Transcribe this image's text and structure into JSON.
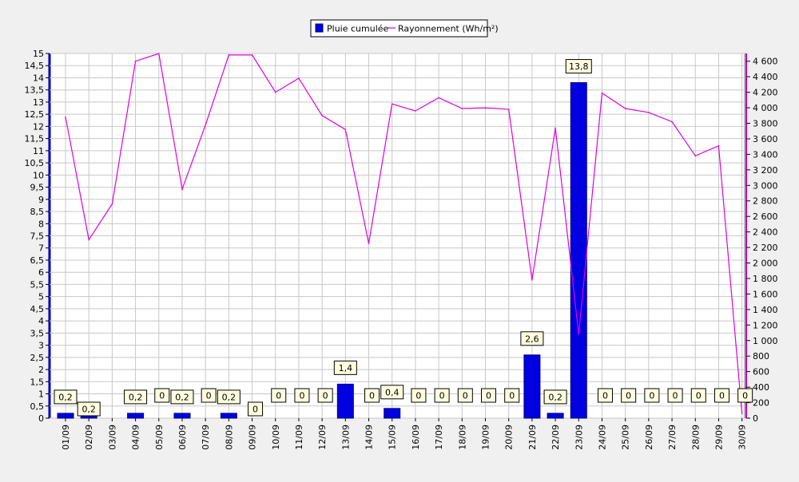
{
  "chart_data": {
    "type": "bar",
    "categories": [
      "01/09",
      "02/09",
      "03/09",
      "04/09",
      "05/09",
      "06/09",
      "07/09",
      "08/09",
      "09/09",
      "10/09",
      "11/09",
      "12/09",
      "13/09",
      "14/09",
      "15/09",
      "16/09",
      "17/09",
      "18/09",
      "19/09",
      "20/09",
      "21/09",
      "22/09",
      "23/09",
      "24/09",
      "25/09",
      "26/09",
      "27/09",
      "28/09",
      "29/09",
      "30/09"
    ],
    "series": [
      {
        "name": "Pluie cumulée",
        "type": "bar",
        "axis": "left",
        "color": "#0000e0",
        "values": [
          0.2,
          0.2,
          0,
          0.2,
          0,
          0.2,
          0,
          0.2,
          0,
          0,
          0,
          0,
          1.4,
          0,
          0.4,
          0,
          0,
          0,
          0,
          0,
          2.6,
          0.2,
          13.8,
          0,
          0,
          0,
          0,
          0,
          0,
          0
        ],
        "labels": [
          "0,2",
          "0,2",
          null,
          "0,2",
          "0",
          "0,2",
          "0",
          "0,2",
          "0",
          "0",
          "0",
          "0",
          "1,4",
          "0",
          "0,4",
          "0",
          "0",
          "0",
          "0",
          "0",
          "2,6",
          "0,2",
          "13,8",
          "0",
          "0",
          "0",
          "0",
          "0",
          "0",
          "0"
        ]
      },
      {
        "name": "Rayonnement (Wh/m²)",
        "type": "line",
        "axis": "right",
        "color": "#e000e0",
        "values": [
          3880,
          2300,
          2760,
          4600,
          4700,
          2950,
          3780,
          4680,
          4680,
          4200,
          4380,
          3900,
          3720,
          2250,
          4050,
          3960,
          4130,
          3990,
          4000,
          3980,
          1780,
          3740,
          1080,
          4190,
          3990,
          3940,
          3820,
          3380,
          3510,
          60
        ]
      }
    ],
    "y_left": {
      "min": 0,
      "max": 15,
      "ticks": [
        "0",
        "0,5",
        "1",
        "1,5",
        "2",
        "2,5",
        "3",
        "3,5",
        "4",
        "4,5",
        "5",
        "5,5",
        "6",
        "6,5",
        "7",
        "7,5",
        "8",
        "8,5",
        "9",
        "9,5",
        "10",
        "10,5",
        "11",
        "11,5",
        "12",
        "12,5",
        "13",
        "13,5",
        "14",
        "14,5",
        "15"
      ]
    },
    "y_right": {
      "min": 0,
      "max": 4700,
      "ticks": [
        0,
        200,
        400,
        600,
        800,
        1000,
        1200,
        1400,
        1600,
        1800,
        2000,
        2200,
        2400,
        2600,
        2800,
        3000,
        3200,
        3400,
        3600,
        3800,
        4000,
        4200,
        4400,
        4600
      ],
      "tick_labels": [
        "0",
        "200",
        "400",
        "600",
        "800",
        "1 000",
        "1 200",
        "1 400",
        "1 600",
        "1 800",
        "2 000",
        "2 200",
        "2 400",
        "2 600",
        "2 800",
        "3 000",
        "3 200",
        "3 400",
        "3 600",
        "3 800",
        "4 000",
        "4 200",
        "4 400",
        "4 600"
      ]
    },
    "grid": true,
    "legend_position": "top-center"
  }
}
